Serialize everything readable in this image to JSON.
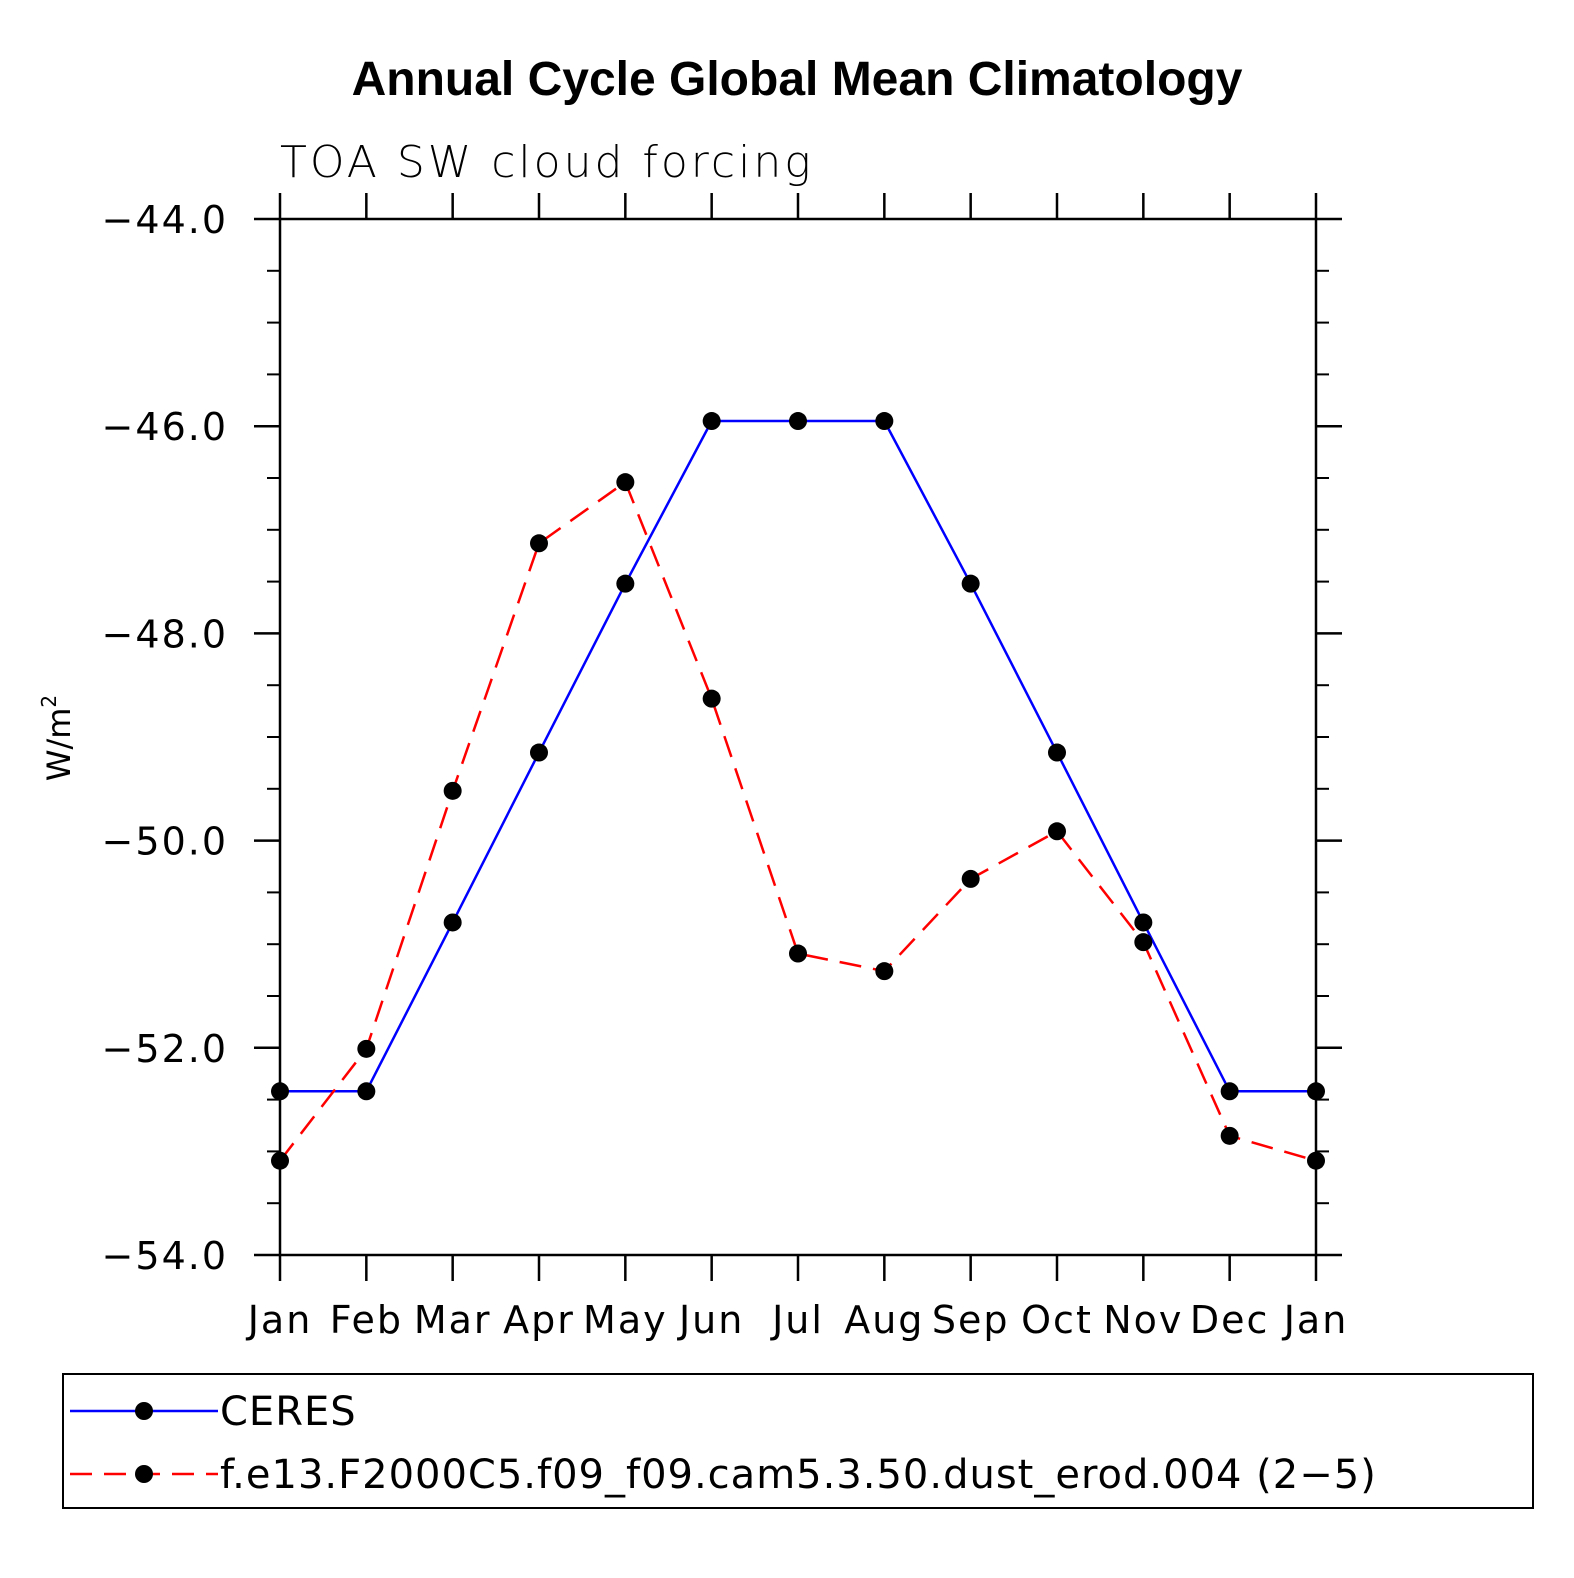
{
  "chart_data": {
    "type": "line",
    "title": "Annual Cycle Global Mean Climatology",
    "subtitle": "TOA SW cloud forcing",
    "ylabel": "W/m",
    "ylabel_superscript": "2",
    "xlabel": "",
    "categories": [
      "Jan",
      "Feb",
      "Mar",
      "Apr",
      "May",
      "Jun",
      "Jul",
      "Aug",
      "Sep",
      "Oct",
      "Nov",
      "Dec",
      "Jan"
    ],
    "ylim": [
      -54.0,
      -44.0
    ],
    "y_ticks": [
      -54.0,
      -52.0,
      -50.0,
      -48.0,
      -46.0,
      -44.0
    ],
    "y_tick_labels": [
      "−54.0",
      "−52.0",
      "−50.0",
      "−48.0",
      "−46.0",
      "−44.0"
    ],
    "y_minor_step": 0.5,
    "grid": false,
    "legend_position": "bottom",
    "series": [
      {
        "name": "CERES",
        "color": "#0000ff",
        "line_style": "solid",
        "marker": "filled-circle",
        "marker_color": "#000000",
        "values": [
          -52.42,
          -52.42,
          -50.79,
          -49.15,
          -47.52,
          -45.95,
          -45.95,
          -45.95,
          -47.52,
          -49.15,
          -50.79,
          -52.42,
          -52.42
        ]
      },
      {
        "name": "f.e13.F2000C5.f09_f09.cam5.3.50.dust_erod.004 (2−5)",
        "color": "#ff0000",
        "line_style": "dashed",
        "marker": "filled-circle",
        "marker_color": "#000000",
        "values": [
          -53.09,
          -52.01,
          -49.52,
          -47.13,
          -46.54,
          -48.63,
          -51.09,
          -51.26,
          -50.37,
          -49.91,
          -50.98,
          -52.85,
          -53.09
        ]
      }
    ]
  }
}
